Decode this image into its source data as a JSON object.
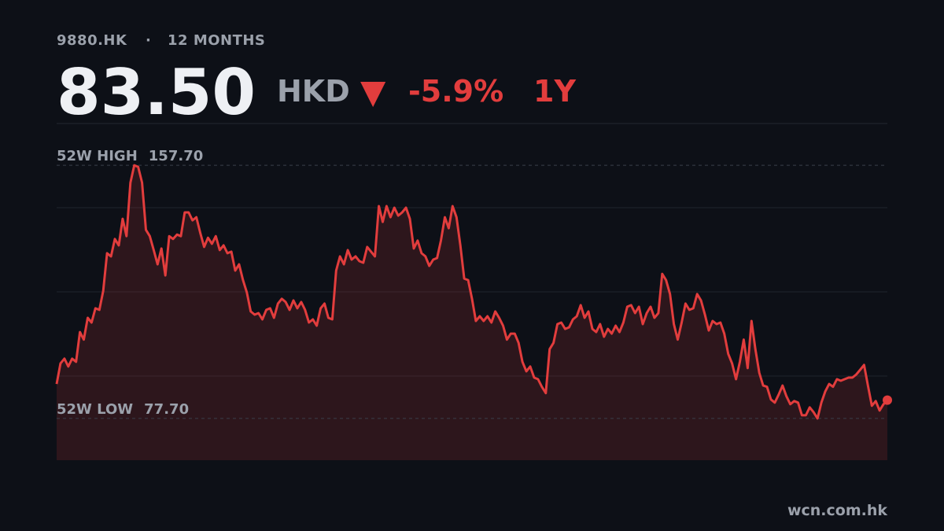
{
  "chart_data": {
    "type": "line",
    "ticker": "9880.HK",
    "separator": "·",
    "period": "12 MONTHS",
    "price": {
      "value": 83.5,
      "label": "83.50"
    },
    "currency": "HKD",
    "direction_symbol": "▼",
    "change": {
      "value": -5.9,
      "label": "-5.9%"
    },
    "range_label": "1Y",
    "source": "wcn.com.hk",
    "high": {
      "label": "52W HIGH",
      "value": 157.7,
      "value_label": "157.70"
    },
    "low": {
      "label": "52W LOW",
      "value": 77.7,
      "value_label": "77.70"
    },
    "color": "#e23d3d",
    "ylim": [
      64.5,
      170.9
    ],
    "values": [
      88.6,
      95.1,
      96.6,
      94.1,
      96.6,
      95.6,
      105.0,
      102.6,
      109.5,
      108.0,
      112.5,
      112.0,
      118.0,
      129.9,
      128.9,
      134.4,
      132.4,
      140.8,
      135.3,
      152.2,
      157.7,
      157.2,
      152.2,
      137.3,
      135.3,
      130.9,
      126.4,
      131.4,
      122.9,
      135.3,
      134.4,
      135.8,
      135.3,
      142.8,
      142.8,
      140.3,
      141.3,
      136.3,
      131.9,
      134.8,
      132.9,
      135.3,
      130.9,
      132.4,
      129.9,
      130.4,
      124.4,
      126.4,
      121.4,
      117.5,
      111.5,
      110.5,
      111.0,
      109.0,
      112.0,
      112.5,
      109.5,
      114.0,
      115.5,
      114.5,
      112.0,
      115.0,
      112.5,
      114.5,
      112.0,
      108.0,
      109.0,
      107.0,
      112.5,
      114.0,
      109.5,
      109.0,
      124.4,
      128.9,
      126.4,
      130.9,
      127.9,
      128.9,
      127.4,
      126.9,
      131.9,
      130.4,
      128.9,
      144.8,
      139.8,
      144.8,
      141.3,
      144.3,
      141.8,
      142.8,
      144.3,
      140.8,
      131.4,
      133.9,
      129.9,
      128.9,
      125.9,
      127.9,
      128.4,
      133.9,
      141.3,
      137.8,
      144.8,
      141.3,
      132.4,
      121.9,
      121.4,
      115.5,
      108.5,
      110.0,
      108.5,
      110.0,
      108.0,
      111.5,
      109.5,
      107.0,
      102.6,
      104.5,
      104.5,
      101.6,
      95.6,
      92.6,
      94.1,
      90.6,
      90.1,
      87.7,
      85.7,
      99.6,
      101.6,
      107.5,
      108.0,
      106.0,
      106.5,
      109.0,
      110.0,
      113.5,
      109.5,
      111.5,
      106.0,
      105.0,
      107.5,
      103.5,
      106.0,
      104.5,
      107.0,
      105.0,
      108.0,
      113.0,
      113.5,
      111.0,
      113.0,
      107.5,
      111.0,
      113.0,
      109.5,
      111.0,
      123.4,
      121.4,
      117.0,
      107.5,
      102.6,
      108.0,
      114.0,
      112.0,
      112.5,
      117.0,
      115.0,
      110.5,
      105.5,
      108.5,
      107.5,
      108.0,
      104.5,
      98.1,
      95.1,
      90.1,
      95.6,
      102.6,
      93.6,
      108.5,
      99.6,
      92.1,
      88.1,
      87.7,
      83.7,
      82.7,
      85.2,
      88.1,
      84.7,
      82.2,
      83.2,
      82.7,
      78.7,
      78.7,
      81.2,
      79.7,
      77.7,
      82.7,
      86.2,
      88.6,
      87.7,
      90.1,
      89.6,
      90.1,
      90.6,
      90.6,
      91.6,
      93.1,
      94.6,
      88.1,
      81.7,
      83.2,
      80.2,
      82.2,
      83.5
    ]
  }
}
